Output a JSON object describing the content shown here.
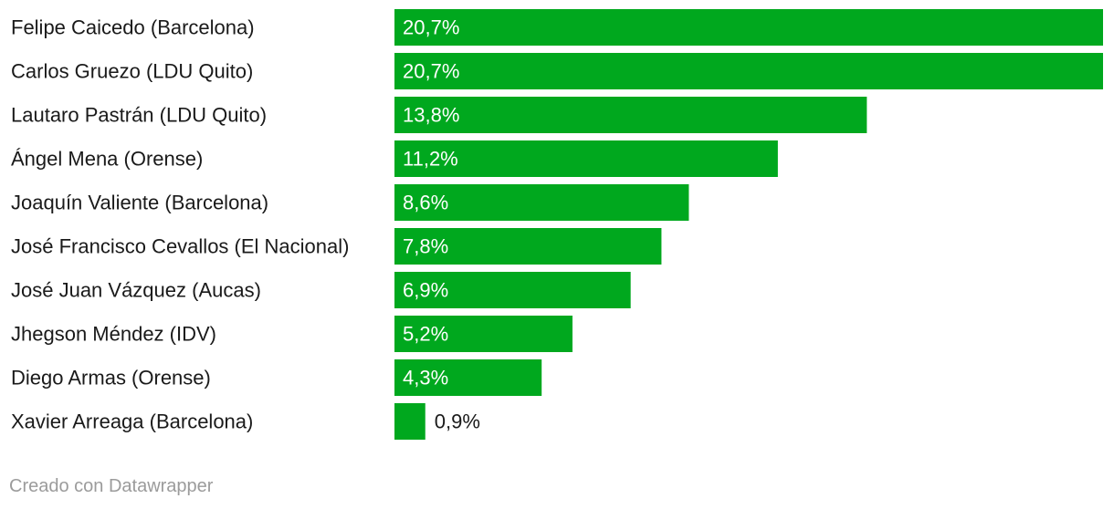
{
  "chart_data": {
    "type": "bar",
    "orientation": "horizontal",
    "categories": [
      "Felipe Caicedo (Barcelona)",
      "Carlos Gruezo (LDU Quito)",
      "Lautaro Pastrán (LDU Quito)",
      "Ángel Mena (Orense)",
      "Joaquín Valiente (Barcelona)",
      "José Francisco Cevallos (El Nacional)",
      "José Juan Vázquez (Aucas)",
      "Jhegson Méndez (IDV)",
      "Diego Armas (Orense)",
      "Xavier Arreaga (Barcelona)"
    ],
    "values": [
      20.7,
      20.7,
      13.8,
      11.2,
      8.6,
      7.8,
      6.9,
      5.2,
      4.3,
      0.9
    ],
    "value_labels": [
      "20,7%",
      "20,7%",
      "13,8%",
      "11,2%",
      "8,6%",
      "7,8%",
      "6,9%",
      "5,2%",
      "4,3%",
      "0,9%"
    ],
    "xlim": [
      0,
      20.7
    ],
    "grid": false,
    "bar_color": "#00a81e",
    "label_color_inside": "#ffffff",
    "label_color_outside": "#1a1a1a",
    "category_color": "#1a1a1a"
  },
  "footer": {
    "credit": "Creado con Datawrapper"
  }
}
